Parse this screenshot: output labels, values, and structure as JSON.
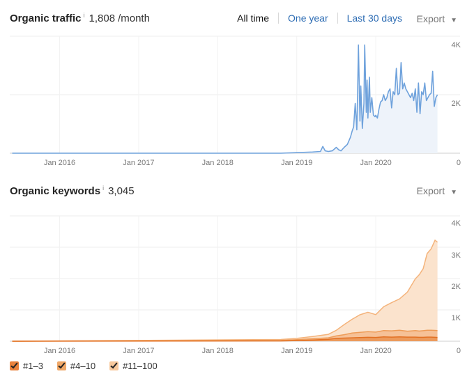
{
  "traffic": {
    "title": "Organic traffic",
    "info": "i",
    "value": "1,808",
    "unit": "/month",
    "tabs": [
      "All time",
      "One year",
      "Last 30 days"
    ],
    "export_label": "Export",
    "export_caret": "▼"
  },
  "keywords": {
    "title": "Organic keywords",
    "info": "i",
    "value": "3,045",
    "export_label": "Export",
    "export_caret": "▼"
  },
  "legend": [
    {
      "label": "#1–3",
      "color": "#e9823c"
    },
    {
      "label": "#4–10",
      "color": "#f0a868"
    },
    {
      "label": "#11–100",
      "color": "#f8c99c"
    }
  ],
  "chart_data": [
    {
      "type": "line",
      "x_ticks": [
        "Jan 2016",
        "Jan 2017",
        "Jan 2018",
        "Jan 2019",
        "Jan 2020"
      ],
      "y_ticks": [
        "4K",
        "2K",
        "0"
      ],
      "ylim": [
        0,
        4000
      ],
      "grid": true,
      "color": "#6fa2dc",
      "fill": "#eef3fa",
      "series": [
        {
          "x": [
            2015.4,
            2018.8,
            2019.0,
            2019.2,
            2019.3,
            2019.33,
            2019.36,
            2019.4,
            2019.45,
            2019.5,
            2019.53,
            2019.56,
            2019.6,
            2019.64,
            2019.68,
            2019.7,
            2019.72,
            2019.74,
            2019.76,
            2019.77,
            2019.78,
            2019.8,
            2019.81,
            2019.83,
            2019.85,
            2019.86,
            2019.88,
            2019.89,
            2019.9,
            2019.92,
            2019.93,
            2019.95,
            2019.97,
            2019.99,
            2020.0,
            2020.02,
            2020.04,
            2020.06,
            2020.08,
            2020.1,
            2020.12,
            2020.14,
            2020.16,
            2020.18,
            2020.2,
            2020.22,
            2020.24,
            2020.26,
            2020.28,
            2020.3,
            2020.32,
            2020.34,
            2020.36,
            2020.38,
            2020.4,
            2020.42,
            2020.44,
            2020.46,
            2020.48,
            2020.5,
            2020.52,
            2020.54,
            2020.56,
            2020.58,
            2020.6,
            2020.62,
            2020.64,
            2020.66,
            2020.68,
            2020.7,
            2020.72,
            2020.74,
            2020.76,
            2020.78
          ],
          "y": [
            0,
            0,
            20,
            40,
            60,
            230,
            80,
            60,
            80,
            200,
            120,
            80,
            200,
            300,
            550,
            750,
            900,
            1700,
            800,
            2000,
            3700,
            1100,
            2300,
            850,
            1700,
            3700,
            1400,
            2500,
            1200,
            2600,
            1400,
            1900,
            1300,
            1250,
            1300,
            1200,
            1500,
            1750,
            1800,
            2000,
            1800,
            1900,
            2100,
            2200,
            1550,
            2100,
            2000,
            2900,
            2000,
            2050,
            3100,
            2200,
            2400,
            2200,
            2100,
            2000,
            1900,
            2050,
            1800,
            2200,
            1400,
            2400,
            1350,
            2100,
            2000,
            2400,
            1800,
            1900,
            2000,
            2050,
            2800,
            1600,
            1900,
            2000
          ]
        }
      ]
    },
    {
      "type": "area",
      "x_ticks": [
        "Jan 2016",
        "Jan 2017",
        "Jan 2018",
        "Jan 2019",
        "Jan 2020"
      ],
      "y_ticks": [
        "4K",
        "3K",
        "2K",
        "1K",
        "0"
      ],
      "ylim": [
        0,
        4000
      ],
      "grid": true,
      "stacked": true,
      "x": [
        2015.4,
        2018.8,
        2019.0,
        2019.2,
        2019.4,
        2019.5,
        2019.6,
        2019.7,
        2019.8,
        2019.9,
        2020.0,
        2020.1,
        2020.2,
        2020.3,
        2020.4,
        2020.5,
        2020.55,
        2020.6,
        2020.65,
        2020.7,
        2020.75,
        2020.78
      ],
      "series": [
        {
          "name": "#1–3",
          "color": "#e9823c",
          "values": [
            0,
            10,
            20,
            40,
            60,
            90,
            100,
            110,
            115,
            125,
            120,
            140,
            130,
            140,
            130,
            130,
            125,
            125,
            130,
            130,
            125,
            120
          ]
        },
        {
          "name": "#4–10",
          "color": "#f0a868",
          "values": [
            0,
            15,
            30,
            40,
            50,
            80,
            110,
            150,
            170,
            180,
            170,
            200,
            200,
            210,
            190,
            210,
            200,
            210,
            220,
            220,
            220,
            220
          ]
        },
        {
          "name": "#11–100",
          "color": "#f8c99c",
          "values": [
            0,
            30,
            40,
            70,
            110,
            180,
            320,
            440,
            560,
            620,
            560,
            760,
            900,
            1000,
            1250,
            1650,
            1800,
            1980,
            2450,
            2600,
            2880,
            2820
          ]
        }
      ]
    }
  ]
}
